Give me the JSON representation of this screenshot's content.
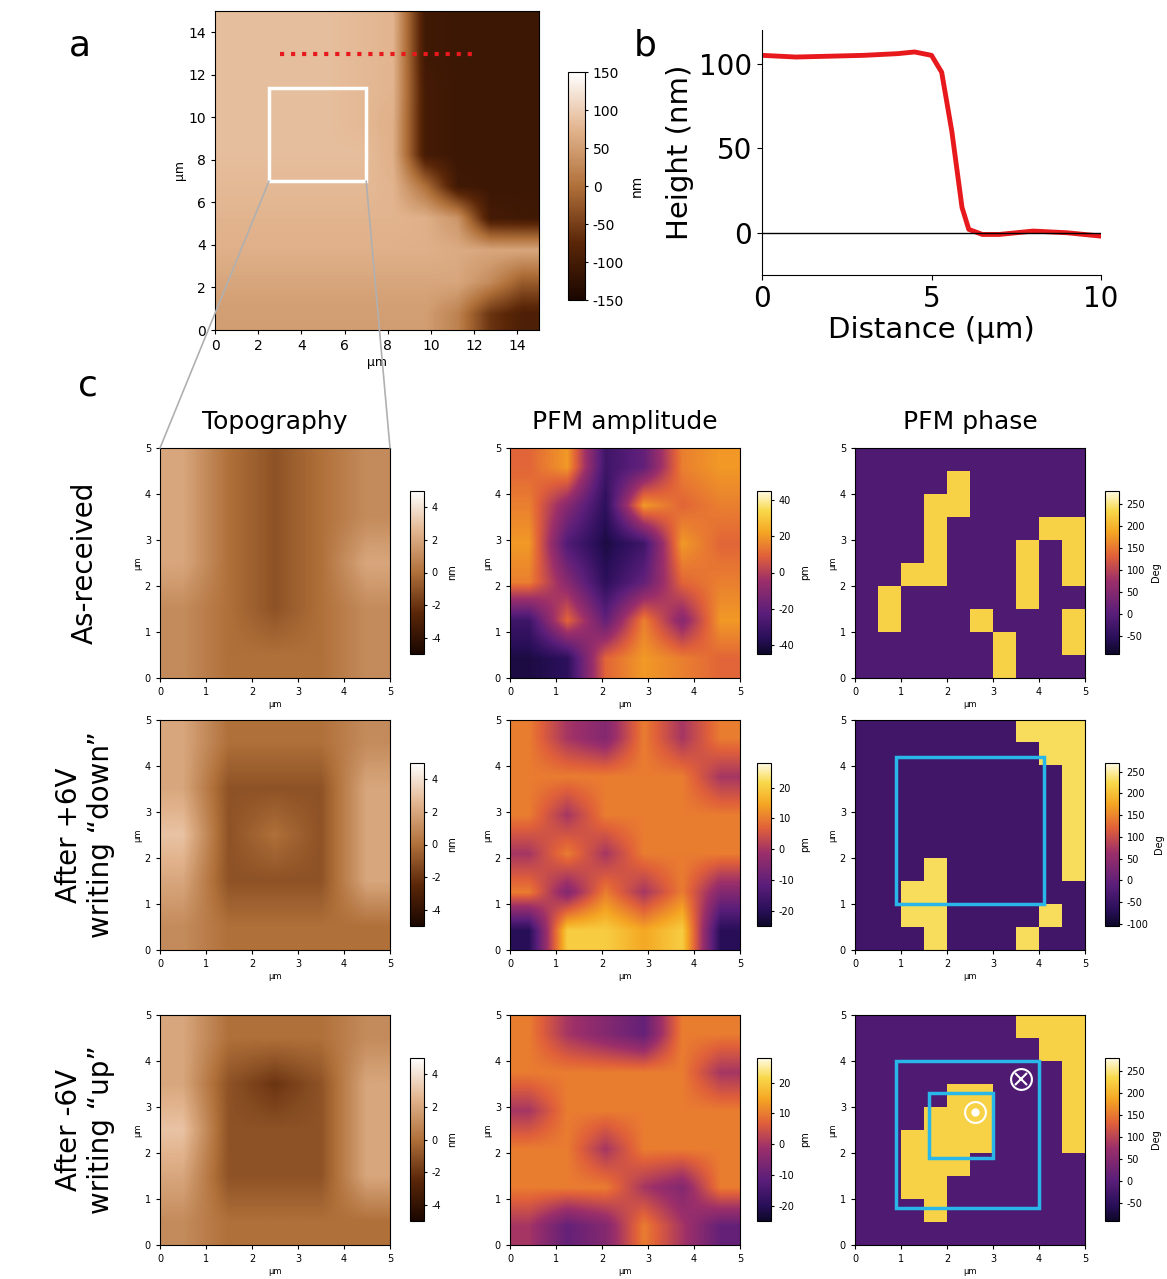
{
  "chart_data": [
    {
      "type": "heatmap",
      "panel": "a",
      "xlabel": "µm",
      "ylabel": "µm",
      "xlim": [
        0,
        15
      ],
      "ylim": [
        0,
        15
      ],
      "xticks": [
        0,
        2,
        4,
        6,
        8,
        10,
        12,
        14
      ],
      "yticks": [
        0,
        2,
        4,
        6,
        8,
        10,
        12,
        14
      ],
      "cells": [
        [
          85,
          85,
          85,
          85,
          80,
          75,
          -105,
          -110,
          -110,
          -110
        ],
        [
          85,
          85,
          85,
          85,
          80,
          75,
          -105,
          -110,
          -110,
          -110
        ],
        [
          85,
          85,
          85,
          85,
          80,
          75,
          -100,
          -110,
          -110,
          -110
        ],
        [
          85,
          85,
          85,
          85,
          80,
          70,
          -100,
          -110,
          -110,
          -110
        ],
        [
          85,
          85,
          85,
          85,
          85,
          70,
          -100,
          -110,
          -110,
          -110
        ],
        [
          80,
          80,
          80,
          80,
          80,
          75,
          0,
          -105,
          -110,
          -110
        ],
        [
          75,
          75,
          75,
          75,
          75,
          75,
          70,
          40,
          -100,
          -105
        ],
        [
          70,
          70,
          70,
          70,
          70,
          70,
          70,
          65,
          60,
          60
        ],
        [
          60,
          60,
          60,
          60,
          60,
          60,
          60,
          60,
          30,
          -20
        ],
        [
          50,
          50,
          50,
          50,
          50,
          50,
          50,
          20,
          -60,
          -90
        ]
      ],
      "colorbar": {
        "range": [
          -150,
          150
        ],
        "ticks": [
          -150,
          -100,
          -50,
          0,
          50,
          100,
          150
        ],
        "label": "nm"
      },
      "line": {
        "x": [
          3,
          12
        ],
        "y": [
          13,
          13
        ],
        "color": "#e8191c",
        "line_style": "dotted"
      },
      "boxes": [
        {
          "x": [
            2.5,
            7
          ],
          "y": [
            7,
            11.4
          ],
          "color": "#ffffff"
        }
      ]
    },
    {
      "type": "line",
      "panel": "b",
      "xlabel": "Distance (μm)",
      "ylabel": "Height (nm)",
      "x": [
        0,
        1,
        2,
        3,
        4,
        4.5,
        5,
        5.3,
        5.6,
        5.9,
        6.1,
        6.5,
        7,
        8,
        9,
        10
      ],
      "values": [
        105,
        104,
        104.5,
        105,
        106,
        107,
        105,
        95,
        60,
        15,
        2,
        -1,
        -1,
        1,
        0,
        -2
      ],
      "color": "#e8191c",
      "xlim": [
        0,
        10
      ],
      "ylim": [
        -25,
        120
      ],
      "xticks": [
        0,
        5,
        10
      ],
      "yticks": [
        0,
        50,
        100
      ],
      "baseline": 0
    },
    {
      "type": "heatmap",
      "panel": "c",
      "title": "Topography",
      "row_label": "As-received",
      "xlabel": "µm",
      "ylabel": "µm",
      "xlim": [
        0,
        5
      ],
      "ylim": [
        0,
        5
      ],
      "xticks": [
        0,
        1,
        2,
        3,
        4,
        5
      ],
      "yticks": [
        0,
        1,
        2,
        3,
        4,
        5
      ],
      "cells": [
        [
          2,
          0,
          -1,
          0,
          1
        ],
        [
          2,
          0,
          -1,
          0,
          1
        ],
        [
          2,
          0,
          -1,
          0,
          2
        ],
        [
          1,
          0,
          -1,
          0,
          1
        ],
        [
          1,
          0,
          0,
          0,
          1
        ]
      ],
      "colorbar": {
        "range": [
          -5,
          5
        ],
        "ticks": [
          -4,
          -2,
          0,
          2,
          4
        ],
        "label": "nm"
      }
    },
    {
      "type": "heatmap",
      "title": "PFM amplitude",
      "xlabel": "µm",
      "ylabel": "µm",
      "xlim": [
        0,
        5
      ],
      "ylim": [
        0,
        5
      ],
      "xticks": [
        0,
        1,
        2,
        3,
        4,
        5
      ],
      "yticks": [
        0,
        1,
        2,
        3,
        4,
        5
      ],
      "cells": [
        [
          10,
          20,
          -30,
          -20,
          15,
          20
        ],
        [
          15,
          -10,
          -35,
          20,
          10,
          15
        ],
        [
          20,
          -25,
          -40,
          -30,
          20,
          10
        ],
        [
          15,
          -10,
          -35,
          -20,
          10,
          15
        ],
        [
          -30,
          10,
          -20,
          15,
          -10,
          20
        ],
        [
          -40,
          -35,
          10,
          20,
          15,
          10
        ]
      ],
      "colorbar": {
        "range": [
          -45,
          45
        ],
        "ticks": [
          -40,
          -20,
          0,
          20,
          40
        ],
        "label": "pm"
      }
    },
    {
      "type": "heatmap",
      "title": "PFM phase",
      "xlabel": "µm",
      "ylabel": "µm",
      "xlim": [
        0,
        5
      ],
      "ylim": [
        0,
        5
      ],
      "xticks": [
        0,
        1,
        2,
        3,
        4,
        5
      ],
      "yticks": [
        0,
        1,
        2,
        3,
        4,
        5
      ],
      "cells": [
        [
          -10,
          -10,
          -10,
          -10,
          -10,
          -10,
          -10,
          -10,
          -10,
          -10
        ],
        [
          -10,
          -10,
          -10,
          -10,
          230,
          -10,
          -10,
          -10,
          -10,
          -10
        ],
        [
          -10,
          -10,
          -10,
          230,
          230,
          -10,
          -10,
          -10,
          -10,
          -10
        ],
        [
          -10,
          -10,
          -10,
          230,
          -10,
          -10,
          -10,
          -10,
          230,
          230
        ],
        [
          -10,
          -10,
          -10,
          230,
          -10,
          -10,
          -10,
          230,
          -10,
          230
        ],
        [
          -10,
          -10,
          230,
          230,
          -10,
          -10,
          -10,
          230,
          -10,
          230
        ],
        [
          -10,
          230,
          -10,
          -10,
          -10,
          -10,
          -10,
          230,
          -10,
          -10
        ],
        [
          -10,
          230,
          -10,
          -10,
          -10,
          230,
          -10,
          -10,
          -10,
          230
        ],
        [
          -10,
          -10,
          -10,
          -10,
          -10,
          -10,
          230,
          -10,
          -10,
          230
        ],
        [
          -10,
          -10,
          -10,
          -10,
          -10,
          -10,
          230,
          -10,
          -10,
          -10
        ]
      ],
      "colorbar": {
        "range": [
          -90,
          280
        ],
        "ticks": [
          -50,
          0,
          50,
          100,
          150,
          200,
          250
        ],
        "label": "Deg"
      }
    },
    {
      "type": "heatmap",
      "row_label": "After +6V\nwriting “down”",
      "xlabel": "µm",
      "ylabel": "µm",
      "xlim": [
        0,
        5
      ],
      "ylim": [
        0,
        5
      ],
      "xticks": [
        0,
        1,
        2,
        3,
        4,
        5
      ],
      "yticks": [
        0,
        1,
        2,
        3,
        4,
        5
      ],
      "cells": [
        [
          2,
          0,
          0,
          0,
          1
        ],
        [
          2,
          -1,
          -1,
          -1,
          2
        ],
        [
          3,
          -1,
          0,
          -1,
          2
        ],
        [
          2,
          -1,
          -1,
          -1,
          2
        ],
        [
          1,
          0,
          0,
          0,
          0
        ]
      ],
      "colorbar": {
        "range": [
          -5,
          5
        ],
        "ticks": [
          -4,
          -2,
          0,
          2,
          4
        ],
        "label": "nm"
      }
    },
    {
      "type": "heatmap",
      "xlabel": "µm",
      "ylabel": "µm",
      "xlim": [
        0,
        5
      ],
      "ylim": [
        0,
        5
      ],
      "xticks": [
        0,
        1,
        2,
        3,
        4,
        5
      ],
      "yticks": [
        0,
        1,
        2,
        3,
        4,
        5
      ],
      "cells": [
        [
          10,
          0,
          -5,
          10,
          0,
          10
        ],
        [
          10,
          10,
          10,
          10,
          10,
          0
        ],
        [
          10,
          0,
          10,
          10,
          10,
          10
        ],
        [
          0,
          10,
          0,
          10,
          10,
          10
        ],
        [
          10,
          -5,
          10,
          0,
          10,
          -5
        ],
        [
          -20,
          20,
          20,
          15,
          20,
          -20
        ]
      ],
      "colorbar": {
        "range": [
          -25,
          28
        ],
        "ticks": [
          -20,
          -10,
          0,
          10,
          20
        ],
        "label": "pm"
      }
    },
    {
      "type": "heatmap",
      "xlabel": "µm",
      "ylabel": "µm",
      "xlim": [
        0,
        5
      ],
      "ylim": [
        0,
        5
      ],
      "xticks": [
        0,
        1,
        2,
        3,
        4,
        5
      ],
      "yticks": [
        0,
        1,
        2,
        3,
        4,
        5
      ],
      "cells": [
        [
          -40,
          -40,
          -40,
          -40,
          -40,
          -40,
          -40,
          230,
          230,
          230
        ],
        [
          -40,
          -40,
          -40,
          -40,
          -40,
          -40,
          -40,
          -40,
          230,
          230
        ],
        [
          -40,
          -40,
          -40,
          -40,
          -40,
          -40,
          -40,
          -40,
          -40,
          230
        ],
        [
          -40,
          -40,
          -40,
          -40,
          -40,
          -40,
          -40,
          -40,
          -40,
          230
        ],
        [
          -40,
          -40,
          -40,
          -40,
          -40,
          -40,
          -40,
          -40,
          -40,
          230
        ],
        [
          -40,
          -40,
          -40,
          -40,
          -40,
          -40,
          -40,
          -40,
          -40,
          230
        ],
        [
          -40,
          -40,
          -40,
          230,
          -40,
          -40,
          -40,
          -40,
          -40,
          230
        ],
        [
          -40,
          -40,
          230,
          230,
          -40,
          -40,
          -40,
          -40,
          -40,
          -40
        ],
        [
          -40,
          -40,
          230,
          230,
          -40,
          -40,
          -40,
          -40,
          230,
          -40
        ],
        [
          -40,
          -40,
          -40,
          230,
          -40,
          -40,
          -40,
          230,
          -40,
          -40
        ]
      ],
      "colorbar": {
        "range": [
          -105,
          270
        ],
        "ticks": [
          -100,
          -50,
          0,
          50,
          100,
          150,
          200,
          250
        ],
        "label": "Deg"
      },
      "boxes": [
        {
          "x": [
            0.9,
            4.1
          ],
          "y": [
            1.0,
            4.2
          ],
          "color": "#29b6e8"
        }
      ]
    },
    {
      "type": "heatmap",
      "row_label": "After -6V\nwriting “up”",
      "xlabel": "µm",
      "ylabel": "µm",
      "xlim": [
        0,
        5
      ],
      "ylim": [
        0,
        5
      ],
      "xticks": [
        0,
        1,
        2,
        3,
        4,
        5
      ],
      "yticks": [
        0,
        1,
        2,
        3,
        4,
        5
      ],
      "cells": [
        [
          2,
          0,
          0,
          0,
          1
        ],
        [
          2,
          -1,
          -2,
          -1,
          2
        ],
        [
          3,
          -1,
          -1,
          -1,
          2
        ],
        [
          2,
          -1,
          -1,
          -1,
          2
        ],
        [
          1,
          0,
          0,
          0,
          0
        ]
      ],
      "colorbar": {
        "range": [
          -5,
          5
        ],
        "ticks": [
          -4,
          -2,
          0,
          2,
          4
        ],
        "label": "nm"
      }
    },
    {
      "type": "heatmap",
      "xlabel": "µm",
      "ylabel": "µm",
      "xlim": [
        0,
        5
      ],
      "ylim": [
        0,
        5
      ],
      "xticks": [
        0,
        1,
        2,
        3,
        4,
        5
      ],
      "yticks": [
        0,
        1,
        2,
        3,
        4,
        5
      ],
      "cells": [
        [
          10,
          0,
          -5,
          -10,
          10,
          10
        ],
        [
          10,
          10,
          10,
          10,
          10,
          0
        ],
        [
          0,
          10,
          10,
          10,
          10,
          10
        ],
        [
          10,
          10,
          0,
          10,
          10,
          10
        ],
        [
          10,
          10,
          10,
          0,
          -5,
          10
        ],
        [
          0,
          -10,
          -5,
          10,
          0,
          -10
        ]
      ],
      "colorbar": {
        "range": [
          -25,
          28
        ],
        "ticks": [
          -20,
          -10,
          0,
          10,
          20
        ],
        "label": "pm"
      }
    },
    {
      "type": "heatmap",
      "xlabel": "µm",
      "ylabel": "µm",
      "xlim": [
        0,
        5
      ],
      "ylim": [
        0,
        5
      ],
      "xticks": [
        0,
        1,
        2,
        3,
        4,
        5
      ],
      "yticks": [
        0,
        1,
        2,
        3,
        4,
        5
      ],
      "cells": [
        [
          -10,
          -10,
          -10,
          -10,
          -10,
          -10,
          -10,
          230,
          230,
          230
        ],
        [
          -10,
          -10,
          -10,
          -10,
          -10,
          -10,
          -10,
          -10,
          230,
          230
        ],
        [
          -10,
          -10,
          -10,
          -10,
          -10,
          -10,
          -10,
          -10,
          -10,
          230
        ],
        [
          -10,
          -10,
          -10,
          -10,
          230,
          230,
          -10,
          -10,
          -10,
          230
        ],
        [
          -10,
          -10,
          -10,
          230,
          230,
          230,
          -10,
          -10,
          -10,
          230
        ],
        [
          -10,
          -10,
          230,
          230,
          230,
          230,
          -10,
          -10,
          -10,
          230
        ],
        [
          -10,
          -10,
          230,
          230,
          230,
          -10,
          -10,
          -10,
          -10,
          -10
        ],
        [
          -10,
          -10,
          230,
          230,
          -10,
          -10,
          -10,
          -10,
          -10,
          -10
        ],
        [
          -10,
          -10,
          -10,
          230,
          -10,
          -10,
          -10,
          -10,
          -10,
          -10
        ],
        [
          -10,
          -10,
          -10,
          -10,
          -10,
          -10,
          -10,
          -10,
          -10,
          -10
        ]
      ],
      "colorbar": {
        "range": [
          -90,
          280
        ],
        "ticks": [
          -50,
          0,
          50,
          100,
          150,
          200,
          250
        ],
        "label": "Deg"
      },
      "boxes": [
        {
          "x": [
            0.9,
            4.0
          ],
          "y": [
            0.8,
            4.0
          ],
          "color": "#29b6e8"
        },
        {
          "x": [
            1.6,
            3.0
          ],
          "y": [
            1.9,
            3.3
          ],
          "color": "#29b6e8"
        }
      ],
      "symbols": [
        {
          "x": 3.6,
          "y": 3.6,
          "marker": "cross"
        },
        {
          "x": 2.6,
          "y": 2.9,
          "marker": "dot"
        }
      ]
    }
  ]
}
